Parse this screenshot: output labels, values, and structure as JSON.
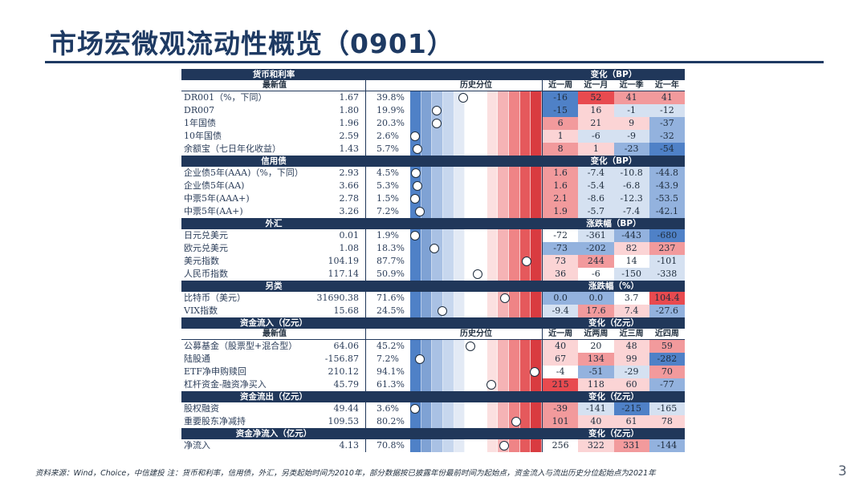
{
  "title": "市场宏微观流动性概览（0901）",
  "footnote": "资料来源：Wind，Choice，中信建投   注：货币和利率，信用债，外汇，另类起始时间为2010年，部分数据按已披露年份最前时间为起始点，资金流入与流出历史分位起始点为2021年",
  "page_number": "3",
  "bar_colors": [
    "#4f81c7",
    "#7fa2d4",
    "#a9c1e4",
    "#c7d7ee",
    "#e3eaf5",
    "#ffffff",
    "#ffffff",
    "#fbe0e0",
    "#f5b3b5",
    "#ef8486",
    "#e5595c",
    "#d93b40"
  ],
  "change_colors": {
    "deep_blue": "#4f81c7",
    "mid_blue": "#93b2de",
    "light_blue": "#d5e1f1",
    "neutral": "#ffffff",
    "light_red": "#fbd4d5",
    "mid_red": "#f29a9c",
    "deep_red": "#e84a4f"
  },
  "sections": [
    {
      "band": "货币和利率",
      "right_label": "变化（BP）",
      "header": {
        "name": "最新值",
        "bar": "历史分位",
        "cols": [
          "近一周",
          "近一月",
          "近一季",
          "近一年"
        ]
      },
      "rows": [
        {
          "name": "DR001（%，下同）",
          "value": "1.67",
          "pct": "39.8%",
          "pct_num": 39.8,
          "changes": [
            "-16",
            "52",
            "41",
            "41"
          ],
          "change_tones": [
            "deep_blue",
            "deep_red",
            "mid_red",
            "mid_red"
          ]
        },
        {
          "name": "DR007",
          "value": "1.80",
          "pct": "19.9%",
          "pct_num": 19.9,
          "changes": [
            "-15",
            "16",
            "-1",
            "-12"
          ],
          "change_tones": [
            "deep_blue",
            "light_red",
            "light_blue",
            "light_blue"
          ]
        },
        {
          "name": "1年国债",
          "value": "1.96",
          "pct": "20.3%",
          "pct_num": 20.3,
          "changes": [
            "6",
            "21",
            "9",
            "-37"
          ],
          "change_tones": [
            "mid_red",
            "light_red",
            "light_red",
            "mid_blue"
          ]
        },
        {
          "name": "10年国债",
          "value": "2.59",
          "pct": "2.6%",
          "pct_num": 2.6,
          "changes": [
            "1",
            "-6",
            "-9",
            "-32"
          ],
          "change_tones": [
            "light_red",
            "light_blue",
            "light_blue",
            "mid_blue"
          ]
        },
        {
          "name": "余额宝（七日年化收益）",
          "value": "1.43",
          "pct": "5.7%",
          "pct_num": 5.7,
          "changes": [
            "8",
            "1",
            "-23",
            "-54"
          ],
          "change_tones": [
            "mid_red",
            "light_red",
            "mid_blue",
            "deep_blue"
          ]
        }
      ]
    },
    {
      "band": "信用债",
      "right_label": "变化（BP）",
      "rows": [
        {
          "name": "企业债5年(AAA)（%，下同）",
          "value": "2.93",
          "pct": "4.5%",
          "pct_num": 4.5,
          "changes": [
            "1.6",
            "-7.4",
            "-10.8",
            "-44.8"
          ],
          "change_tones": [
            "mid_red",
            "light_blue",
            "light_blue",
            "mid_blue"
          ]
        },
        {
          "name": "企业债5年(AA)",
          "value": "3.66",
          "pct": "5.3%",
          "pct_num": 5.3,
          "changes": [
            "1.6",
            "-5.4",
            "-6.8",
            "-43.9"
          ],
          "change_tones": [
            "mid_red",
            "light_blue",
            "light_blue",
            "mid_blue"
          ]
        },
        {
          "name": "中票5年(AAA+)",
          "value": "2.78",
          "pct": "1.5%",
          "pct_num": 1.5,
          "changes": [
            "2.1",
            "-8.6",
            "-12.3",
            "-53.5"
          ],
          "change_tones": [
            "mid_red",
            "light_blue",
            "light_blue",
            "mid_blue"
          ]
        },
        {
          "name": "中票5年(AA+)",
          "value": "3.26",
          "pct": "7.2%",
          "pct_num": 7.2,
          "changes": [
            "1.9",
            "-5.7",
            "-7.4",
            "-42.1"
          ],
          "change_tones": [
            "mid_red",
            "light_blue",
            "light_blue",
            "mid_blue"
          ]
        }
      ]
    },
    {
      "band": "外汇",
      "right_label": "涨跌幅（BP）",
      "rows": [
        {
          "name": "日元兑美元",
          "value": "0.01",
          "pct": "1.9%",
          "pct_num": 1.9,
          "changes": [
            "-72",
            "-361",
            "-443",
            "-680"
          ],
          "change_tones": [
            "neutral",
            "light_blue",
            "mid_blue",
            "deep_blue"
          ]
        },
        {
          "name": "欧元兑美元",
          "value": "1.08",
          "pct": "18.3%",
          "pct_num": 18.3,
          "changes": [
            "-73",
            "-202",
            "82",
            "237"
          ],
          "change_tones": [
            "mid_blue",
            "mid_blue",
            "light_red",
            "mid_red"
          ]
        },
        {
          "name": "美元指数",
          "value": "104.19",
          "pct": "87.7%",
          "pct_num": 87.7,
          "changes": [
            "73",
            "244",
            "14",
            "-101"
          ],
          "change_tones": [
            "light_red",
            "mid_red",
            "neutral",
            "light_blue"
          ]
        },
        {
          "name": "人民币指数",
          "value": "117.14",
          "pct": "50.9%",
          "pct_num": 50.9,
          "changes": [
            "36",
            "-6",
            "-150",
            "-338"
          ],
          "change_tones": [
            "light_red",
            "neutral",
            "light_blue",
            "light_blue"
          ]
        }
      ]
    },
    {
      "band": "另类",
      "right_label": "涨跌幅（%）",
      "rows": [
        {
          "name": "比特币（美元）",
          "value": "31690.38",
          "pct": "71.6%",
          "pct_num": 71.6,
          "changes": [
            "0.0",
            "0.0",
            "3.7",
            "104.4"
          ],
          "change_tones": [
            "mid_blue",
            "mid_blue",
            "neutral",
            "deep_red"
          ]
        },
        {
          "name": "VIX指数",
          "value": "15.68",
          "pct": "24.5%",
          "pct_num": 24.5,
          "changes": [
            "-9.4",
            "17.6",
            "7.4",
            "-27.6"
          ],
          "change_tones": [
            "light_blue",
            "mid_red",
            "light_red",
            "mid_blue"
          ]
        }
      ]
    },
    {
      "band": "资金流入（亿元）",
      "right_label": "变化（亿元）",
      "header": {
        "name": "最新值",
        "bar": "历史分位",
        "cols": [
          "近一周",
          "近两周",
          "近三周",
          "近四周"
        ]
      },
      "rows": [
        {
          "name": "公募基金（股票型+混合型）",
          "value": "64.06",
          "pct": "45.2%",
          "pct_num": 45.2,
          "changes": [
            "40",
            "20",
            "48",
            "59"
          ],
          "change_tones": [
            "light_red",
            "neutral",
            "light_red",
            "mid_red"
          ]
        },
        {
          "name": "陆股通",
          "value": "-156.87",
          "pct": "7.2%",
          "pct_num": 7.2,
          "changes": [
            "67",
            "134",
            "99",
            "-282"
          ],
          "change_tones": [
            "light_red",
            "mid_red",
            "light_red",
            "deep_blue"
          ]
        },
        {
          "name": "ETF净申购赎回",
          "value": "210.12",
          "pct": "94.1%",
          "pct_num": 94.1,
          "changes": [
            "-4",
            "-51",
            "-29",
            "70"
          ],
          "change_tones": [
            "neutral",
            "mid_blue",
            "light_blue",
            "mid_red"
          ]
        },
        {
          "name": "杠杆资金-融资净买入",
          "value": "45.79",
          "pct": "61.3%",
          "pct_num": 61.3,
          "changes": [
            "215",
            "118",
            "60",
            "-77"
          ],
          "change_tones": [
            "deep_red",
            "light_red",
            "light_red",
            "mid_blue"
          ]
        }
      ]
    },
    {
      "band": "资金流出（亿元）",
      "right_label": "变化（亿元）",
      "rows": [
        {
          "name": "股权融资",
          "value": "49.44",
          "pct": "3.6%",
          "pct_num": 3.6,
          "changes": [
            "-39",
            "-141",
            "-215",
            "-165"
          ],
          "change_tones": [
            "mid_red",
            "light_blue",
            "deep_blue",
            "light_blue"
          ]
        },
        {
          "name": "重要股东净减持",
          "value": "109.53",
          "pct": "80.2%",
          "pct_num": 80.2,
          "changes": [
            "101",
            "40",
            "61",
            "78"
          ],
          "change_tones": [
            "mid_red",
            "light_red",
            "light_red",
            "light_red"
          ]
        }
      ]
    },
    {
      "band": "资金净流入（亿元）",
      "right_label": "变化（亿元）",
      "rows": [
        {
          "name": "净流入",
          "value": "4.13",
          "pct": "70.8%",
          "pct_num": 70.8,
          "changes": [
            "256",
            "322",
            "331",
            "-144"
          ],
          "change_tones": [
            "neutral",
            "light_red",
            "mid_red",
            "mid_blue"
          ]
        }
      ]
    }
  ]
}
